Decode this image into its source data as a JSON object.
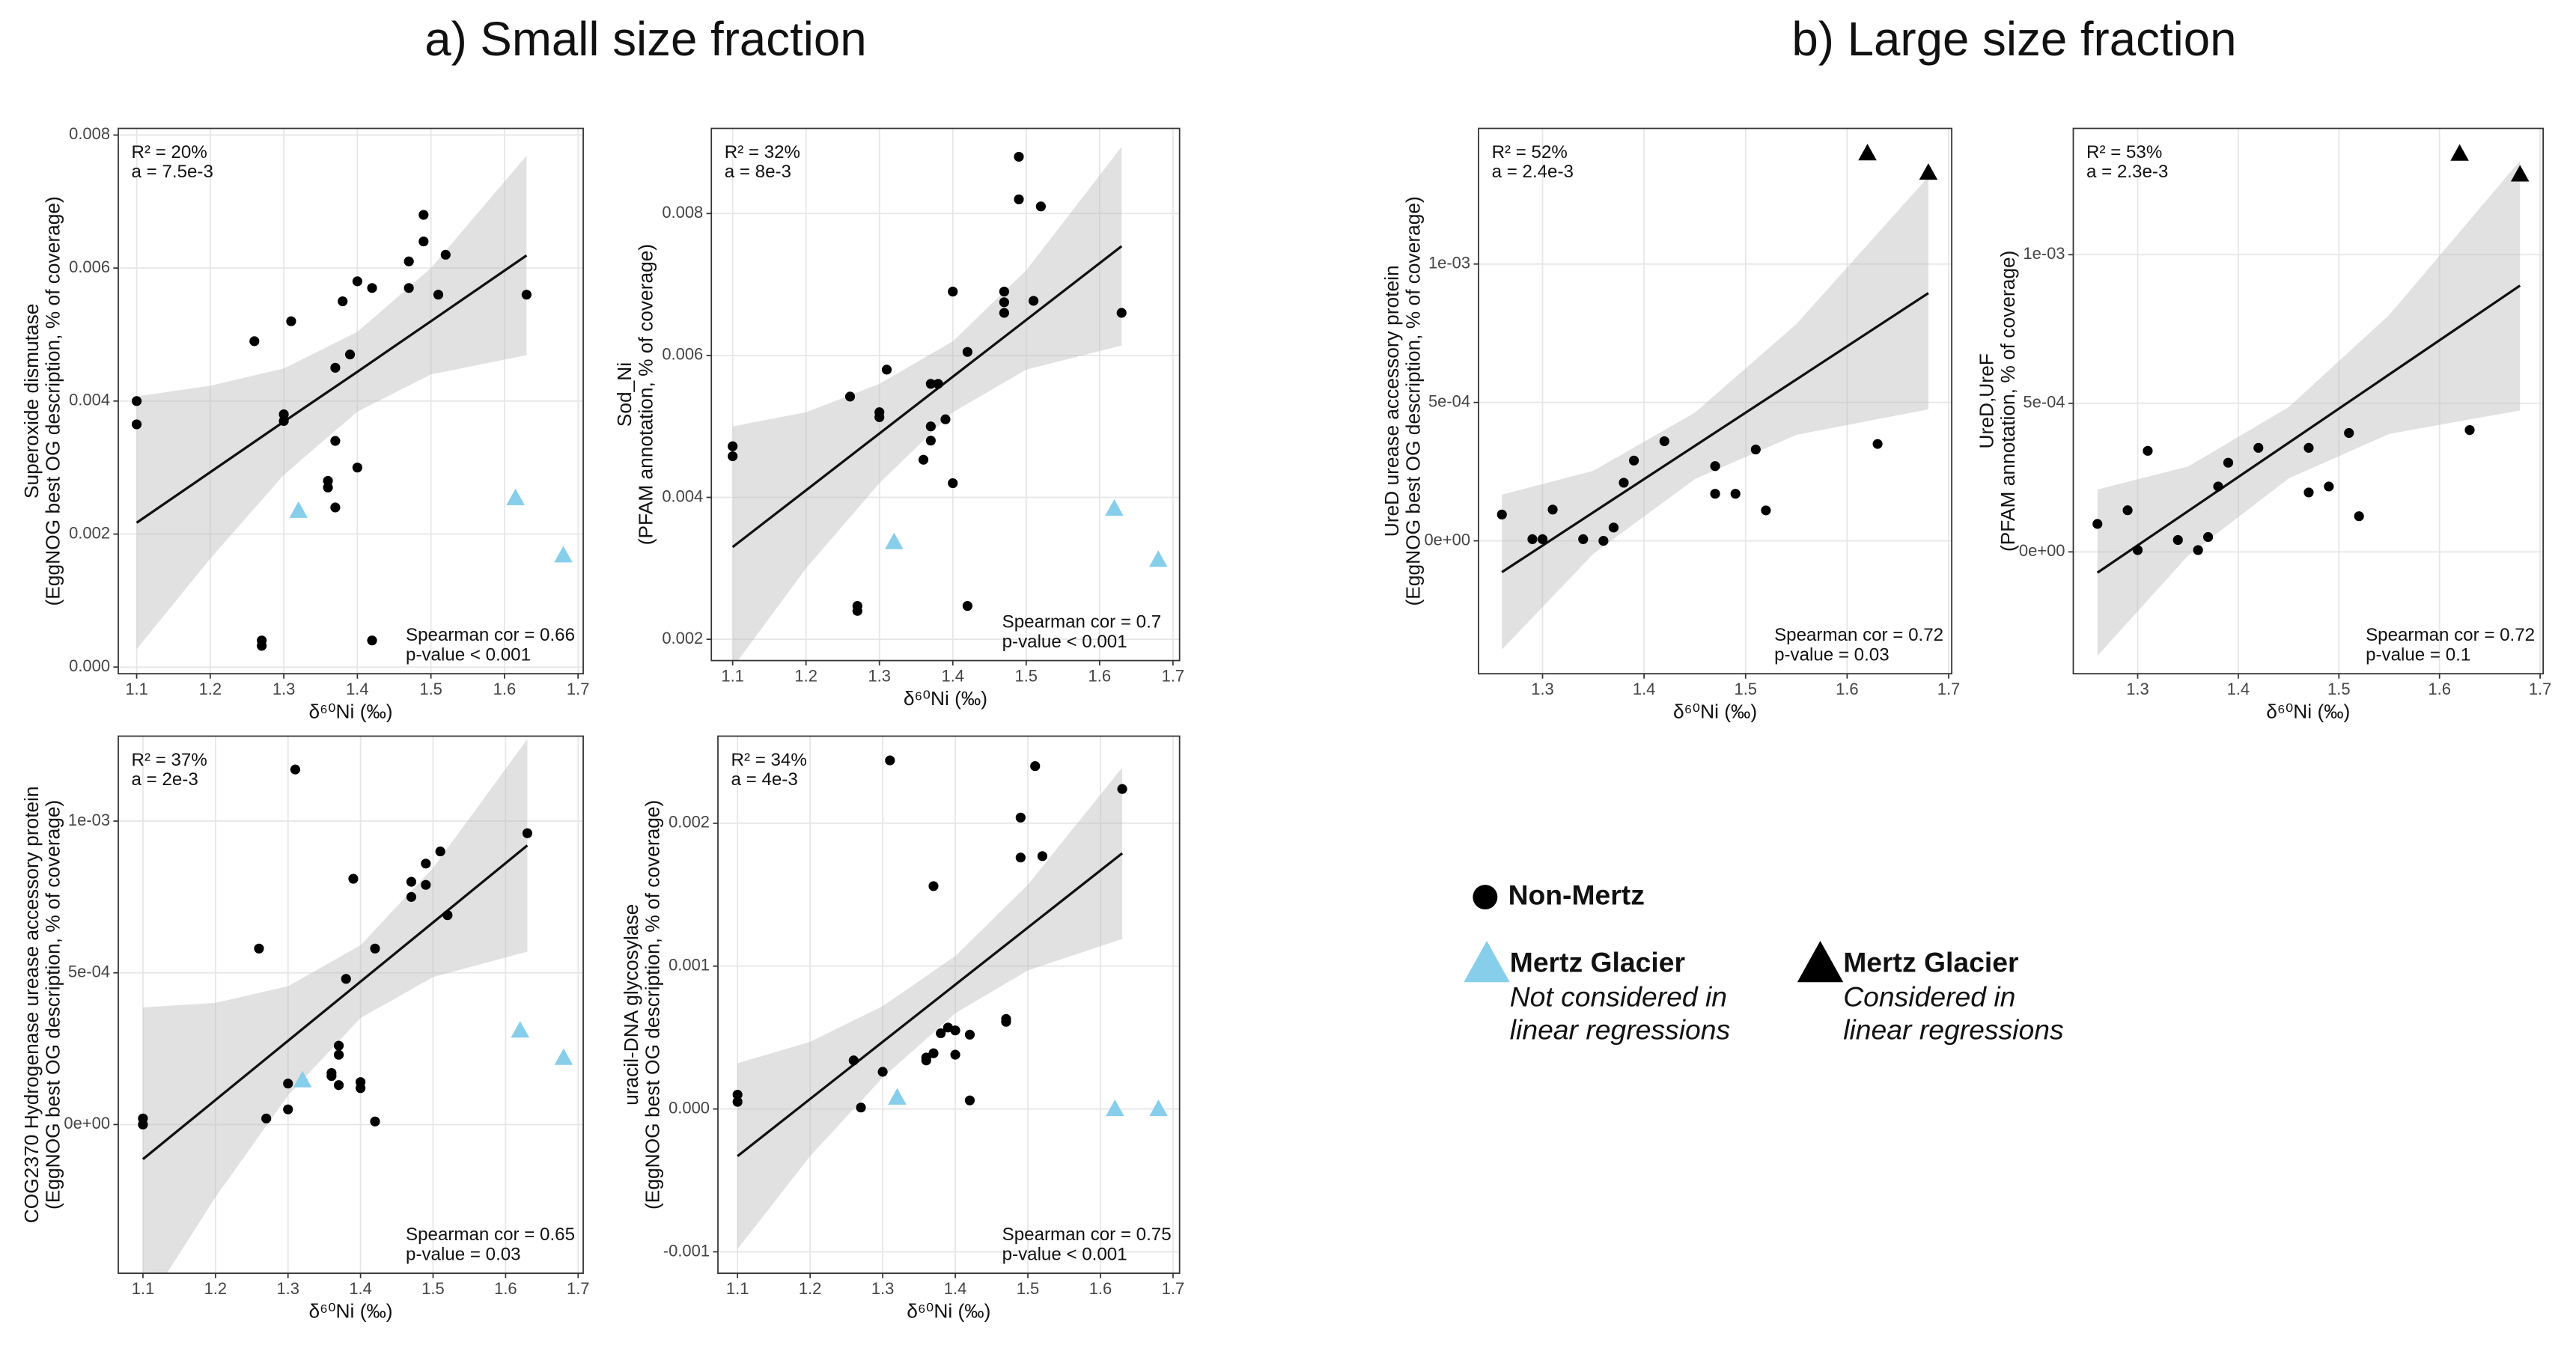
{
  "section_titles": [
    "a) Small size fraction",
    "b) Large size fraction"
  ],
  "legend": [
    {
      "name": "Non-Mertz",
      "marker": "circle",
      "color": "#000000"
    },
    {
      "name": "Mertz Glacier",
      "marker": "triangle",
      "color": "#87ceeb",
      "note": [
        "Not considered in",
        "linear regressions"
      ]
    },
    {
      "name": "Mertz Glacier",
      "marker": "triangle",
      "color": "#000000",
      "note": [
        "Considered in",
        "linear regressions"
      ]
    }
  ],
  "chart_data": [
    {
      "type": "scatter",
      "xlabel": "δ⁶⁰Ni (‰)",
      "ylabel": [
        "Superoxide dismutase",
        "(EggNOG best OG description, % of coverage)"
      ],
      "annotations_top": [
        "R² = 20%",
        "a = 7.5e-3"
      ],
      "annotations_bottom": [
        "Spearman cor = 0.66",
        "p-value < 0.001"
      ],
      "xlim": [
        1.075,
        1.707
      ],
      "xticks": [
        1.1,
        1.2,
        1.3,
        1.4,
        1.5,
        1.6,
        1.7
      ],
      "ylim": [
        -0.0001,
        0.0081
      ],
      "yticks": [
        {
          "value": 0,
          "label": "0.000"
        },
        0.002,
        0.004,
        0.006,
        0.008
      ],
      "grid": true,
      "series": [
        {
          "marker": "circle",
          "color": "#000000",
          "x": [
            1.1,
            1.1,
            1.26,
            1.27,
            1.27,
            1.3,
            1.3,
            1.31,
            1.36,
            1.36,
            1.37,
            1.37,
            1.37,
            1.38,
            1.39,
            1.4,
            1.4,
            1.42,
            1.42,
            1.47,
            1.47,
            1.49,
            1.49,
            1.51,
            1.52,
            1.63
          ],
          "values": [
            0.004,
            0.00365,
            0.0049,
            0.0004,
            0.00032,
            0.0038,
            0.0037,
            0.0052,
            0.0028,
            0.0027,
            0.0034,
            0.0045,
            0.0024,
            0.0055,
            0.0047,
            0.0058,
            0.003,
            0.0057,
            0.0004,
            0.0061,
            0.0057,
            0.0068,
            0.0064,
            0.0056,
            0.0062,
            0.0056
          ]
        },
        {
          "marker": "triangle",
          "color": "#87ceeb",
          "x": [
            1.32,
            1.615,
            1.68
          ],
          "values": [
            0.00235,
            0.00254,
            0.00168
          ]
        }
      ],
      "fit": {
        "x": [
          1.1,
          1.2,
          1.3,
          1.4,
          1.5,
          1.63
        ],
        "values": [
          0.00217,
          0.00293,
          0.00369,
          0.00444,
          0.0052,
          0.00619
        ],
        "lower": [
          0.00027,
          0.00163,
          0.00289,
          0.00384,
          0.0044,
          0.00469
        ],
        "upper": [
          0.00407,
          0.00423,
          0.00449,
          0.00504,
          0.006,
          0.00769
        ]
      }
    },
    {
      "type": "scatter",
      "xlabel": "δ⁶⁰Ni (‰)",
      "ylabel": [
        "Sod_Ni",
        "(PFAM annotation, % of coverage)"
      ],
      "annotations_top": [
        "R² = 32%",
        "a = 8e-3"
      ],
      "annotations_bottom": [
        "Spearman cor = 0.7",
        "p-value < 0.001"
      ],
      "xlim": [
        1.071,
        1.709
      ],
      "xticks": [
        1.1,
        1.2,
        1.3,
        1.4,
        1.5,
        1.6,
        1.7
      ],
      "ylim": [
        0.0017,
        0.0092
      ],
      "yticks": [
        0.002,
        0.004,
        0.006,
        0.008
      ],
      "grid": true,
      "series": [
        {
          "marker": "circle",
          "color": "#000000",
          "x": [
            1.1,
            1.1,
            1.26,
            1.27,
            1.27,
            1.3,
            1.3,
            1.31,
            1.36,
            1.37,
            1.37,
            1.37,
            1.38,
            1.39,
            1.4,
            1.4,
            1.42,
            1.42,
            1.47,
            1.47,
            1.47,
            1.49,
            1.49,
            1.51,
            1.52,
            1.63
          ],
          "values": [
            0.00472,
            0.00458,
            0.00542,
            0.00247,
            0.0024,
            0.0052,
            0.00513,
            0.0058,
            0.00453,
            0.005,
            0.0048,
            0.0056,
            0.0056,
            0.0051,
            0.0069,
            0.0042,
            0.00605,
            0.00247,
            0.0069,
            0.00675,
            0.0066,
            0.0088,
            0.0082,
            0.00677,
            0.0081,
            0.0066
          ]
        },
        {
          "marker": "triangle",
          "color": "#87ceeb",
          "x": [
            1.32,
            1.62,
            1.68
          ],
          "values": [
            0.00337,
            0.00384,
            0.00312
          ]
        }
      ],
      "fit": {
        "x": [
          1.1,
          1.2,
          1.3,
          1.4,
          1.5,
          1.63
        ],
        "values": [
          0.0033,
          0.0041,
          0.0049,
          0.0057,
          0.0065,
          0.00754
        ],
        "lower": [
          0.0016,
          0.003,
          0.0042,
          0.0052,
          0.0058,
          0.00614
        ],
        "upper": [
          0.005,
          0.0052,
          0.0056,
          0.0062,
          0.0072,
          0.00894
        ]
      }
    },
    {
      "type": "scatter",
      "xlabel": "δ⁶⁰Ni (‰)",
      "ylabel": [
        "COG2370 Hydrogenase urease accessory protein",
        "(EggNOG best OG description, % of coverage)"
      ],
      "annotations_top": [
        "R² = 37%",
        "a = 2e-3"
      ],
      "annotations_bottom": [
        "Spearman cor = 0.65",
        "p-value = 0.03"
      ],
      "xlim": [
        1.066,
        1.707
      ],
      "xticks": [
        1.1,
        1.2,
        1.3,
        1.4,
        1.5,
        1.6,
        1.7
      ],
      "ylim": [
        -0.00049,
        0.00128
      ],
      "yticks": [
        {
          "value": 0,
          "label": "0e+00"
        },
        {
          "value": 0.0005,
          "label": "5e-04"
        },
        {
          "value": 0.001,
          "label": "1e-03"
        }
      ],
      "grid": true,
      "series": [
        {
          "marker": "circle",
          "color": "#000000",
          "x": [
            1.1,
            1.1,
            1.26,
            1.27,
            1.3,
            1.3,
            1.31,
            1.36,
            1.36,
            1.37,
            1.37,
            1.37,
            1.38,
            1.39,
            1.4,
            1.4,
            1.42,
            1.42,
            1.47,
            1.47,
            1.49,
            1.49,
            1.51,
            1.52,
            1.63
          ],
          "values": [
            2e-05,
            0.0,
            0.00058,
            2e-05,
            0.000135,
            5e-05,
            0.00117,
            0.00017,
            0.00016,
            0.00026,
            0.00023,
            0.00013,
            0.00048,
            0.00081,
            0.00014,
            0.00012,
            0.00058,
            1e-05,
            0.0008,
            0.00075,
            0.00086,
            0.00079,
            0.0009,
            0.00069,
            0.00096
          ]
        },
        {
          "marker": "triangle",
          "color": "#87ceeb",
          "x": [
            1.32,
            1.62,
            1.68
          ],
          "values": [
            0.000146,
            0.00031,
            0.00022
          ]
        }
      ],
      "fit": {
        "x": [
          1.1,
          1.2,
          1.3,
          1.4,
          1.5,
          1.63
        ],
        "values": [
          -0.000114,
          8.1e-05,
          0.000276,
          0.000471,
          0.000666,
          0.00092
        ],
        "lower": [
          -0.000614,
          -0.000239,
          9.6e-05,
          0.000351,
          0.000486,
          0.00057
        ],
        "upper": [
          0.000386,
          0.000401,
          0.000456,
          0.000591,
          0.000846,
          0.00127
        ]
      }
    },
    {
      "type": "scatter",
      "xlabel": "δ⁶⁰Ni (‰)",
      "ylabel": [
        "uracil-DNA glycosylase",
        "(EggNOG best OG description, % of coverage)"
      ],
      "annotations_top": [
        "R² = 34%",
        "a = 4e-3"
      ],
      "annotations_bottom": [
        "Spearman cor = 0.75",
        "p-value < 0.001"
      ],
      "xlim": [
        1.073,
        1.709
      ],
      "xticks": [
        1.1,
        1.2,
        1.3,
        1.4,
        1.5,
        1.6,
        1.7
      ],
      "ylim": [
        -0.00115,
        0.00261
      ],
      "yticks": [
        -0.001,
        {
          "value": 0,
          "label": "0.000"
        },
        0.001,
        0.002
      ],
      "grid": true,
      "series": [
        {
          "marker": "circle",
          "color": "#000000",
          "x": [
            1.1,
            1.1,
            1.26,
            1.27,
            1.3,
            1.31,
            1.36,
            1.36,
            1.37,
            1.37,
            1.38,
            1.39,
            1.4,
            1.4,
            1.42,
            1.42,
            1.47,
            1.47,
            1.49,
            1.49,
            1.51,
            1.52,
            1.63
          ],
          "values": [
            0.0001,
            5e-05,
            0.00034,
            1e-05,
            0.00026,
            0.00244,
            0.00034,
            0.00036,
            0.00039,
            0.00156,
            0.00053,
            0.00057,
            0.00055,
            0.00038,
            0.00052,
            6e-05,
            0.00063,
            0.00061,
            0.00204,
            0.00176,
            0.0024,
            0.00177,
            0.00224
          ]
        },
        {
          "marker": "triangle",
          "color": "#87ceeb",
          "x": [
            1.32,
            1.62,
            1.68
          ],
          "values": [
            8e-05,
            0.0,
            0.0
          ]
        }
      ],
      "fit": {
        "x": [
          1.1,
          1.2,
          1.3,
          1.4,
          1.5,
          1.63
        ],
        "values": [
          -0.00033,
          7e-05,
          0.00047,
          0.00087,
          0.00127,
          0.00179
        ],
        "lower": [
          -0.00098,
          -0.00033,
          0.00022,
          0.00067,
          0.00097,
          0.00119
        ],
        "upper": [
          0.00032,
          0.00047,
          0.00072,
          0.00107,
          0.00157,
          0.00239
        ]
      }
    },
    {
      "type": "scatter",
      "xlabel": "δ⁶⁰Ni (‰)",
      "ylabel": [
        "UreD urease accessory protein",
        "(EggNOG best OG description, % of coverage)"
      ],
      "annotations_top": [
        "R² = 52%",
        "a = 2.4e-3"
      ],
      "annotations_bottom": [
        "Spearman cor = 0.72",
        "p-value = 0.03"
      ],
      "xlim": [
        1.237,
        1.703
      ],
      "xticks": [
        1.3,
        1.4,
        1.5,
        1.6,
        1.7
      ],
      "ylim": [
        -0.00048,
        0.00149
      ],
      "yticks": [
        {
          "value": 0,
          "label": "0e+00"
        },
        {
          "value": 0.0005,
          "label": "5e-04"
        },
        {
          "value": 0.001,
          "label": "1e-03"
        }
      ],
      "grid": true,
      "series": [
        {
          "marker": "circle",
          "color": "#000000",
          "x": [
            1.26,
            1.29,
            1.3,
            1.31,
            1.34,
            1.36,
            1.37,
            1.38,
            1.39,
            1.42,
            1.47,
            1.47,
            1.49,
            1.51,
            1.52,
            1.63
          ],
          "values": [
            9.5e-05,
            6e-06,
            6e-06,
            0.000113,
            6e-06,
            0.0,
            4.8e-05,
            0.00021,
            0.00029,
            0.00036,
            0.00027,
            0.00017,
            0.00017,
            0.00033,
            0.00011,
            0.00035
          ]
        },
        {
          "marker": "triangle",
          "color": "#000000",
          "x": [
            1.62,
            1.68
          ],
          "values": [
            0.0014,
            0.00133
          ]
        }
      ],
      "fit": {
        "x": [
          1.26,
          1.35,
          1.45,
          1.55,
          1.68
        ],
        "values": [
          -0.000113,
          0.000103,
          0.000343,
          0.000583,
          0.000895
        ],
        "lower": [
          -0.000393,
          -4.7e-05,
          0.000223,
          0.000383,
          0.000475
        ],
        "upper": [
          0.000167,
          0.000253,
          0.000463,
          0.000783,
          0.001315
        ]
      }
    },
    {
      "type": "scatter",
      "xlabel": "δ⁶⁰Ni (‰)",
      "ylabel": [
        "UreD,UreF",
        "(PFAM annotation, % of coverage)"
      ],
      "annotations_top": [
        "R² = 53%",
        "a = 2.3e-3"
      ],
      "annotations_bottom": [
        "Spearman cor = 0.72",
        "p-value = 0.1"
      ],
      "xlim": [
        1.236,
        1.703
      ],
      "xticks": [
        1.3,
        1.4,
        1.5,
        1.6,
        1.7
      ],
      "ylim": [
        -0.00041,
        0.001425
      ],
      "yticks": [
        {
          "value": 0,
          "label": "0e+00"
        },
        {
          "value": 0.0005,
          "label": "5e-04"
        },
        {
          "value": 0.001,
          "label": "1e-03"
        }
      ],
      "grid": true,
      "series": [
        {
          "marker": "circle",
          "color": "#000000",
          "x": [
            1.26,
            1.29,
            1.3,
            1.31,
            1.34,
            1.36,
            1.37,
            1.38,
            1.39,
            1.42,
            1.47,
            1.47,
            1.49,
            1.51,
            1.52,
            1.63
          ],
          "values": [
            9.4e-05,
            0.00014,
            6e-06,
            0.00034,
            4e-05,
            6e-06,
            5e-05,
            0.00022,
            0.0003,
            0.00035,
            0.00035,
            0.0002,
            0.00022,
            0.0004,
            0.00012,
            0.00041
          ]
        },
        {
          "marker": "triangle",
          "color": "#000000",
          "x": [
            1.62,
            1.68
          ],
          "values": [
            0.00134,
            0.00127
          ]
        }
      ],
      "fit": {
        "x": [
          1.26,
          1.35,
          1.45,
          1.55,
          1.68
        ],
        "values": [
          -7e-05,
          0.000137,
          0.000367,
          0.000597,
          0.000896
        ],
        "lower": [
          -0.00035,
          -1.3e-05,
          0.000247,
          0.000397,
          0.000476
        ],
        "upper": [
          0.00021,
          0.000287,
          0.000487,
          0.000797,
          0.001316
        ]
      }
    }
  ]
}
